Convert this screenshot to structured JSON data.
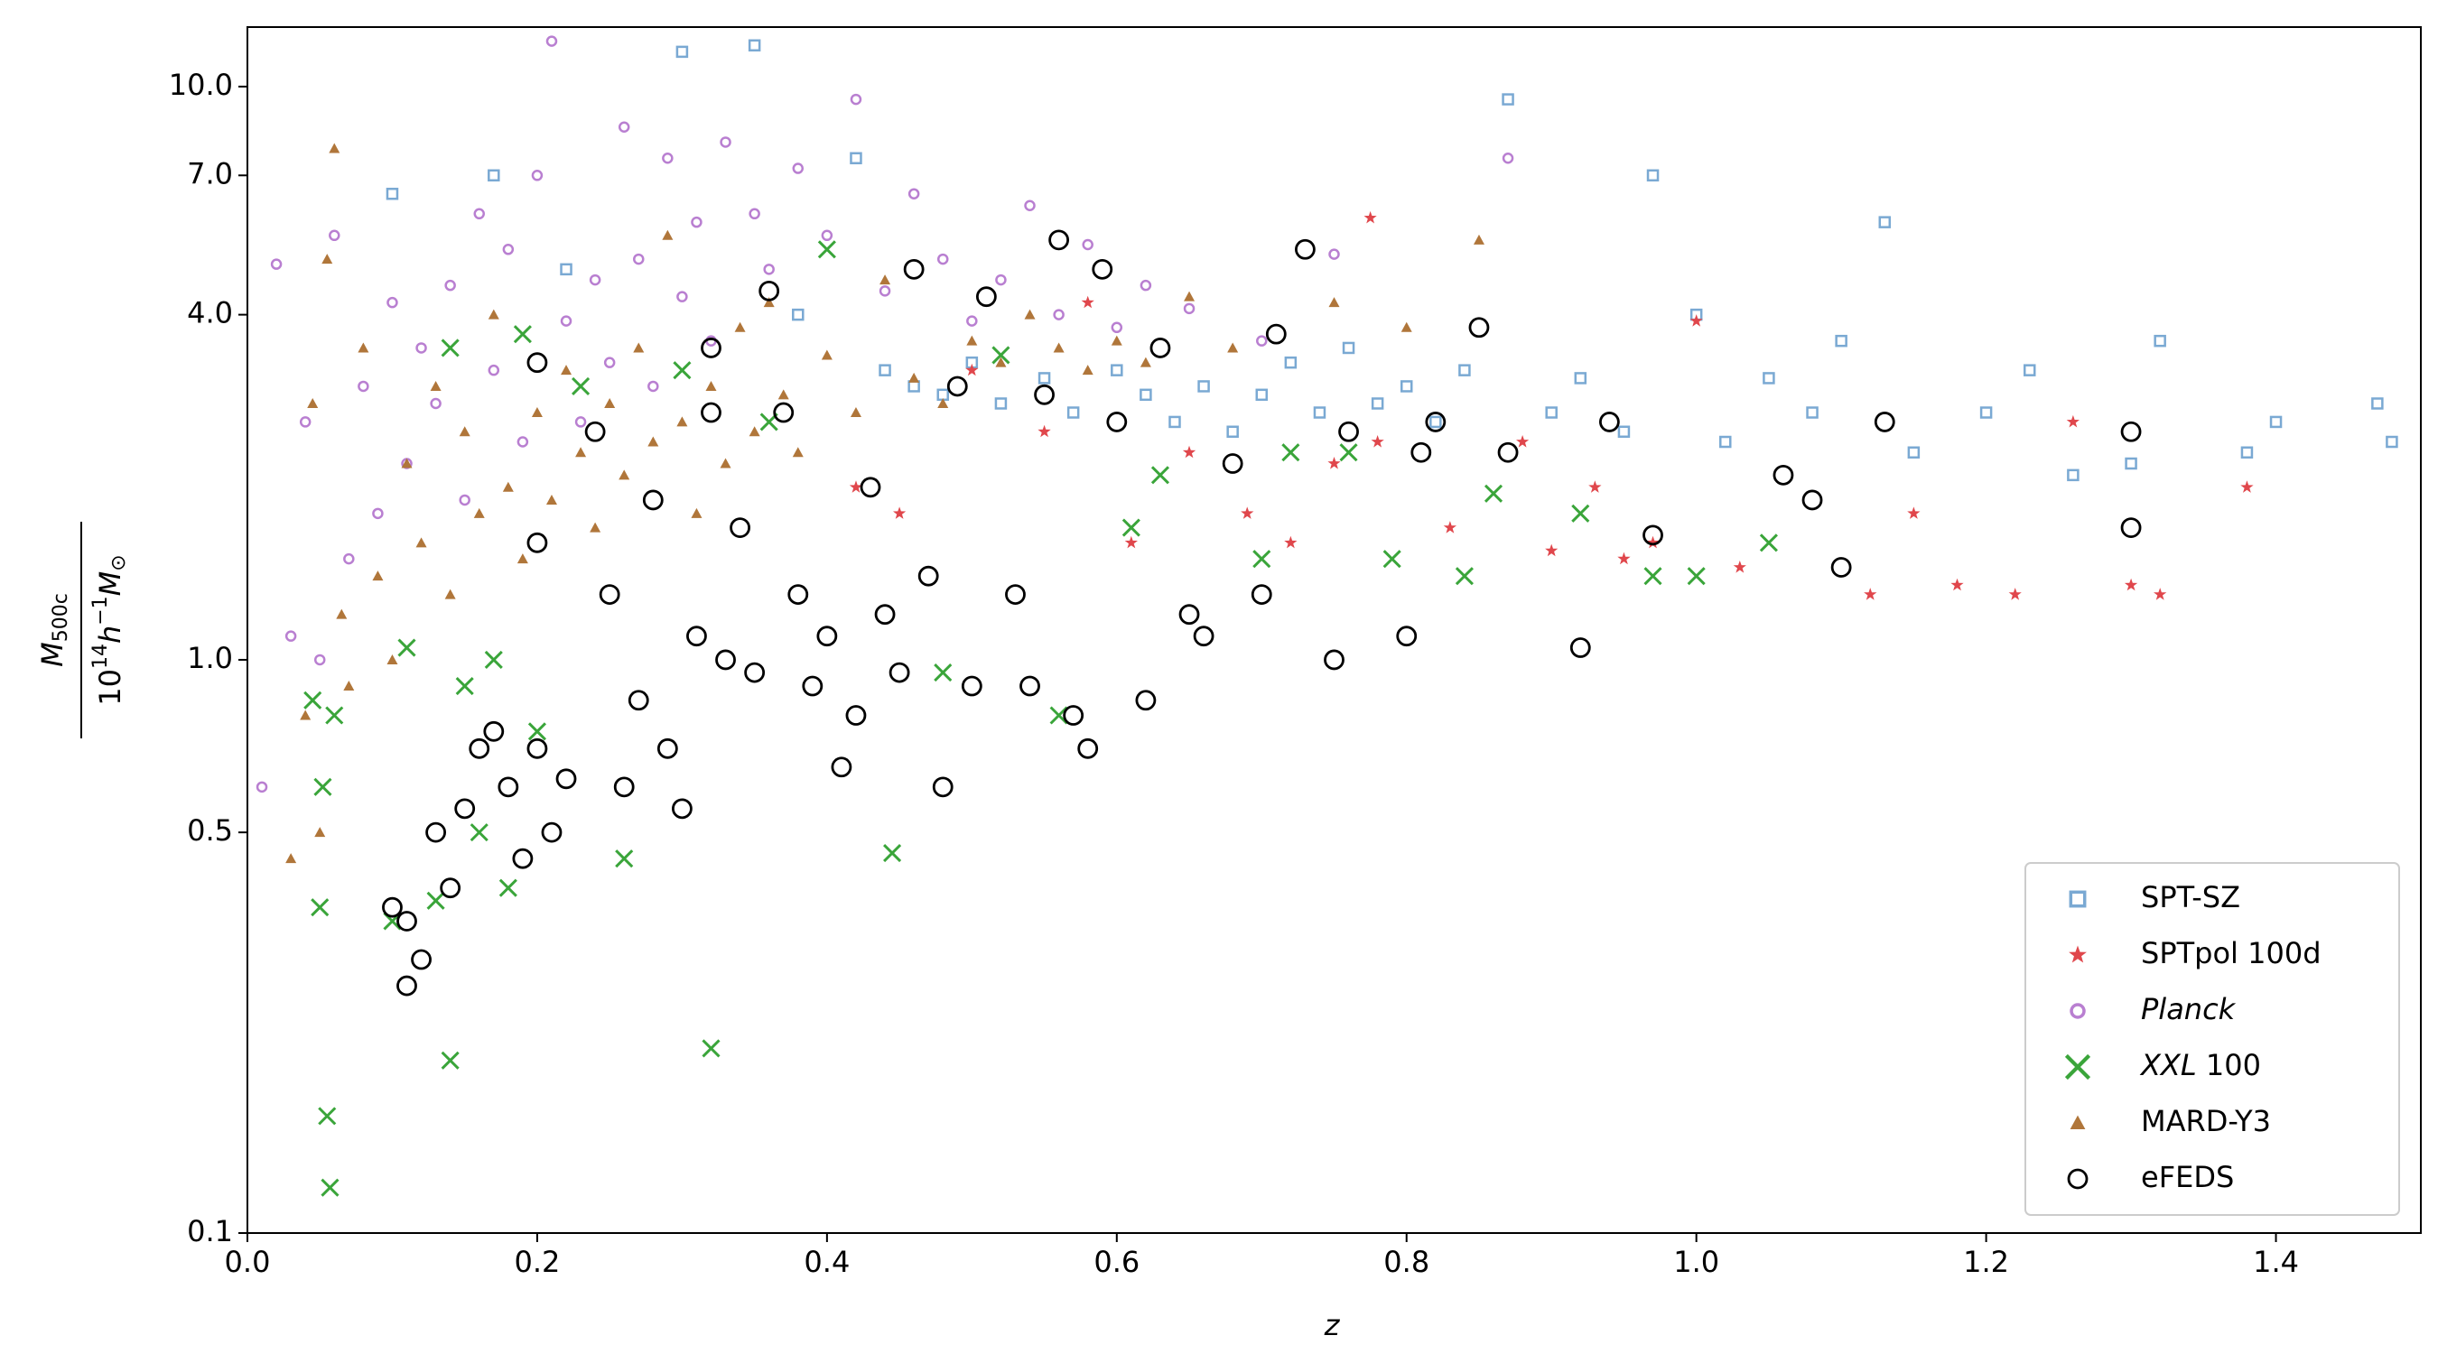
{
  "chart_data": {
    "type": "scatter",
    "xlabel": "z",
    "ylabel": {
      "numerator": [
        "M",
        "500c"
      ],
      "denominator": [
        "10",
        "14",
        "h",
        "−1",
        "M",
        "⊙"
      ]
    },
    "xlim": [
      0,
      1.5
    ],
    "ylim": [
      0.1,
      12.7
    ],
    "log_y": true,
    "xticks": [
      {
        "value": 0,
        "label": "0.0"
      },
      0.2,
      0.4,
      0.6,
      0.8,
      {
        "value": 1,
        "label": "1.0"
      },
      1.2,
      1.4
    ],
    "yticks": [
      0.1,
      0.5,
      {
        "value": 1,
        "label": "1.0"
      },
      {
        "value": 4,
        "label": "4.0"
      },
      {
        "value": 7,
        "label": "7.0"
      },
      {
        "value": 10,
        "label": "10.0"
      }
    ],
    "legend": "lower right",
    "series": [
      {
        "name": "SPT-SZ",
        "color": "#7aa9d3",
        "marker": "square",
        "x": [
          0.1,
          0.17,
          0.22,
          0.3,
          0.35,
          0.38,
          0.42,
          0.44,
          0.46,
          0.48,
          0.5,
          0.52,
          0.55,
          0.57,
          0.6,
          0.62,
          0.64,
          0.66,
          0.68,
          0.7,
          0.72,
          0.74,
          0.76,
          0.78,
          0.8,
          0.82,
          0.84,
          0.87,
          0.9,
          0.92,
          0.95,
          0.97,
          1.0,
          1.02,
          1.05,
          1.08,
          1.1,
          1.13,
          1.15,
          1.2,
          1.23,
          1.26,
          1.3,
          1.32,
          1.38,
          1.4,
          1.47,
          1.48
        ],
        "values": [
          6.5,
          7.0,
          4.8,
          11.5,
          11.8,
          4.0,
          7.5,
          3.2,
          3.0,
          2.9,
          3.3,
          2.8,
          3.1,
          2.7,
          3.2,
          2.9,
          2.6,
          3.0,
          2.5,
          2.9,
          3.3,
          2.7,
          3.5,
          2.8,
          3.0,
          2.6,
          3.2,
          9.5,
          2.7,
          3.1,
          2.5,
          7.0,
          4.0,
          2.4,
          3.1,
          2.7,
          3.6,
          5.8,
          2.3,
          2.7,
          3.2,
          2.1,
          2.2,
          3.6,
          2.3,
          2.6,
          2.8,
          2.4
        ]
      },
      {
        "name": "SPTpol 100d",
        "color": "#e0474c",
        "marker": "star",
        "x": [
          0.42,
          0.45,
          0.5,
          0.55,
          0.58,
          0.61,
          0.65,
          0.69,
          0.72,
          0.75,
          0.775,
          0.78,
          0.83,
          0.88,
          0.9,
          0.93,
          0.95,
          0.97,
          1.0,
          1.03,
          1.12,
          1.15,
          1.18,
          1.22,
          1.26,
          1.3,
          1.32,
          1.38
        ],
        "values": [
          2.0,
          1.8,
          3.2,
          2.5,
          4.2,
          1.6,
          2.3,
          1.8,
          1.6,
          2.2,
          5.9,
          2.4,
          1.7,
          2.4,
          1.55,
          2.0,
          1.5,
          1.6,
          3.9,
          1.45,
          1.3,
          1.8,
          1.35,
          1.3,
          2.6,
          1.35,
          1.3,
          2.0
        ]
      },
      {
        "name": "Planck",
        "color": "#b97fd1",
        "marker": "circle",
        "italic_words": 1,
        "x": [
          0.01,
          0.02,
          0.03,
          0.04,
          0.05,
          0.06,
          0.07,
          0.08,
          0.09,
          0.1,
          0.11,
          0.12,
          0.13,
          0.14,
          0.15,
          0.16,
          0.17,
          0.18,
          0.19,
          0.2,
          0.21,
          0.22,
          0.23,
          0.24,
          0.25,
          0.26,
          0.27,
          0.28,
          0.29,
          0.3,
          0.31,
          0.32,
          0.33,
          0.35,
          0.36,
          0.38,
          0.4,
          0.42,
          0.44,
          0.46,
          0.48,
          0.5,
          0.52,
          0.54,
          0.56,
          0.58,
          0.6,
          0.62,
          0.65,
          0.7,
          0.75,
          0.87
        ],
        "values": [
          0.6,
          4.9,
          1.1,
          2.6,
          1.0,
          5.5,
          1.5,
          3.0,
          1.8,
          4.2,
          2.2,
          3.5,
          2.8,
          4.5,
          1.9,
          6.0,
          3.2,
          5.2,
          2.4,
          7.0,
          12.0,
          3.9,
          2.6,
          4.6,
          3.3,
          8.5,
          5.0,
          3.0,
          7.5,
          4.3,
          5.8,
          3.6,
          8.0,
          6.0,
          4.8,
          7.2,
          5.5,
          9.5,
          4.4,
          6.5,
          5.0,
          3.9,
          4.6,
          6.2,
          4.0,
          5.3,
          3.8,
          4.5,
          4.1,
          3.6,
          5.1,
          7.5
        ]
      },
      {
        "name": "XXL 100",
        "color": "#3aa53a",
        "marker": "x",
        "italic_words": 1,
        "x": [
          0.045,
          0.05,
          0.052,
          0.055,
          0.057,
          0.06,
          0.1,
          0.11,
          0.13,
          0.14,
          0.14,
          0.15,
          0.16,
          0.17,
          0.18,
          0.19,
          0.2,
          0.23,
          0.26,
          0.3,
          0.32,
          0.36,
          0.4,
          0.445,
          0.48,
          0.52,
          0.56,
          0.61,
          0.63,
          0.7,
          0.72,
          0.76,
          0.79,
          0.84,
          0.86,
          0.92,
          0.97,
          1.0,
          1.05
        ],
        "values": [
          0.85,
          0.37,
          0.6,
          0.16,
          0.12,
          0.8,
          0.35,
          1.05,
          0.38,
          0.2,
          3.5,
          0.9,
          0.5,
          1.0,
          0.4,
          3.7,
          0.75,
          3.0,
          0.45,
          3.2,
          0.21,
          2.6,
          5.2,
          0.46,
          0.95,
          3.4,
          0.8,
          1.7,
          2.1,
          1.5,
          2.3,
          2.3,
          1.5,
          1.4,
          1.95,
          1.8,
          1.4,
          1.4,
          1.6
        ]
      },
      {
        "name": "MARD-Y3",
        "color": "#b0763a",
        "marker": "triangle",
        "x": [
          0.03,
          0.04,
          0.045,
          0.05,
          0.055,
          0.06,
          0.065,
          0.07,
          0.08,
          0.09,
          0.1,
          0.11,
          0.12,
          0.13,
          0.14,
          0.15,
          0.16,
          0.17,
          0.18,
          0.19,
          0.2,
          0.21,
          0.22,
          0.23,
          0.24,
          0.25,
          0.26,
          0.27,
          0.28,
          0.29,
          0.3,
          0.31,
          0.32,
          0.33,
          0.34,
          0.35,
          0.36,
          0.37,
          0.38,
          0.4,
          0.42,
          0.44,
          0.46,
          0.48,
          0.5,
          0.52,
          0.54,
          0.56,
          0.58,
          0.6,
          0.62,
          0.65,
          0.68,
          0.75,
          0.8,
          0.85
        ],
        "values": [
          0.45,
          0.8,
          2.8,
          0.5,
          5.0,
          7.8,
          1.2,
          0.9,
          3.5,
          1.4,
          1.0,
          2.2,
          1.6,
          3.0,
          1.3,
          2.5,
          1.8,
          4.0,
          2.0,
          1.5,
          2.7,
          1.9,
          3.2,
          2.3,
          1.7,
          2.8,
          2.1,
          3.5,
          2.4,
          5.5,
          2.6,
          1.8,
          3.0,
          2.2,
          3.8,
          2.5,
          4.2,
          2.9,
          2.3,
          3.4,
          2.7,
          4.6,
          3.1,
          2.8,
          3.6,
          3.3,
          4.0,
          3.5,
          3.2,
          3.6,
          3.3,
          4.3,
          3.5,
          4.2,
          3.8,
          5.4
        ]
      },
      {
        "name": "eFEDS",
        "color": "#000000",
        "marker": "ring",
        "x": [
          0.1,
          0.11,
          0.11,
          0.12,
          0.13,
          0.14,
          0.15,
          0.16,
          0.17,
          0.18,
          0.19,
          0.2,
          0.2,
          0.2,
          0.21,
          0.22,
          0.24,
          0.25,
          0.26,
          0.27,
          0.28,
          0.29,
          0.3,
          0.31,
          0.32,
          0.32,
          0.33,
          0.34,
          0.35,
          0.36,
          0.37,
          0.38,
          0.39,
          0.4,
          0.41,
          0.42,
          0.43,
          0.44,
          0.45,
          0.46,
          0.47,
          0.48,
          0.49,
          0.5,
          0.51,
          0.53,
          0.54,
          0.55,
          0.56,
          0.57,
          0.58,
          0.59,
          0.6,
          0.62,
          0.63,
          0.65,
          0.66,
          0.68,
          0.7,
          0.71,
          0.73,
          0.75,
          0.76,
          0.8,
          0.81,
          0.82,
          0.85,
          0.87,
          0.92,
          0.94,
          0.97,
          1.06,
          1.08,
          1.1,
          1.13,
          1.3,
          1.3
        ],
        "values": [
          0.37,
          0.27,
          0.35,
          0.3,
          0.5,
          0.4,
          0.55,
          0.7,
          0.75,
          0.6,
          0.45,
          0.7,
          3.3,
          1.6,
          0.5,
          0.62,
          2.5,
          1.3,
          0.6,
          0.85,
          1.9,
          0.7,
          0.55,
          1.1,
          3.5,
          2.7,
          1.0,
          1.7,
          0.95,
          4.4,
          2.7,
          1.3,
          0.9,
          1.1,
          0.65,
          0.8,
          2.0,
          1.2,
          0.95,
          4.8,
          1.4,
          0.6,
          3.0,
          0.9,
          4.3,
          1.3,
          0.9,
          2.9,
          5.4,
          0.8,
          0.7,
          4.8,
          2.6,
          0.85,
          3.5,
          1.2,
          1.1,
          2.2,
          1.3,
          3.7,
          5.2,
          1.0,
          2.5,
          1.1,
          2.3,
          2.6,
          3.8,
          2.3,
          1.05,
          2.6,
          1.65,
          2.1,
          1.9,
          1.45,
          2.6,
          2.5,
          1.7
        ]
      }
    ]
  }
}
